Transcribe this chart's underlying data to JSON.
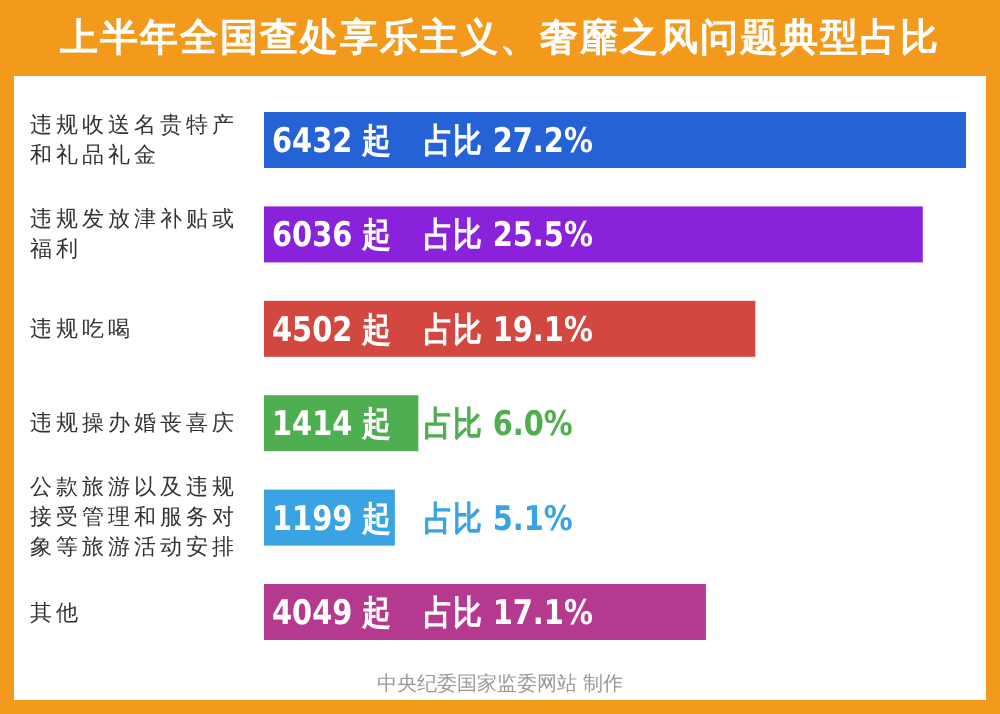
{
  "chart_data": {
    "type": "bar",
    "orientation": "horizontal",
    "title": "上半年全国查处享乐主义、奢靡之风问题典型占比",
    "categories": [
      "违规收送名贵特产和礼品礼金",
      "违规发放津补贴或福利",
      "违规吃喝",
      "违规操办婚丧喜庆",
      "公款旅游以及违规接受管理和服务对象等旅游活动安排",
      "其他"
    ],
    "values": [
      6432,
      6036,
      4502,
      1414,
      1199,
      4049
    ],
    "colors": [
      "#2462d6",
      "#8a22db",
      "#d2473f",
      "#4fae4f",
      "#3aa3e3",
      "#b5398f"
    ],
    "value_labels": [
      "6432 起",
      "6036 起",
      "4502 起",
      "1414 起",
      "1199 起",
      "4049 起"
    ],
    "annotations": [
      "占比 27.2%",
      "占比 25.5%",
      "占比 19.1%",
      "占比 6.0%",
      "占比 5.1%",
      "占比 17.1%",
      "中央纪委国家监委网站 制作"
    ]
  }
}
